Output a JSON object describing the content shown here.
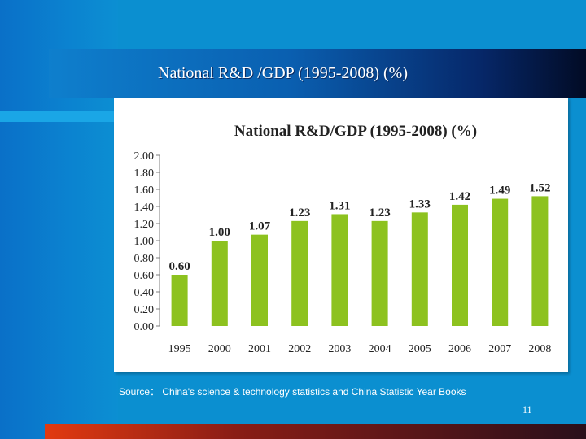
{
  "slide": {
    "title": "National R&D /GDP (1995-2008)  (%)",
    "source": "Source： China's science & technology statistics and China Statistic Year Books",
    "page_number": "11"
  },
  "colors": {
    "bar": "#8dc21f",
    "axis": "#7f7f7f",
    "text": "#222222"
  },
  "chart_data": {
    "type": "bar",
    "title": "National R&D/GDP  (1995-2008)  (%)",
    "categories": [
      "1995",
      "2000",
      "2001",
      "2002",
      "2003",
      "2004",
      "2005",
      "2006",
      "2007",
      "2008"
    ],
    "values": [
      0.6,
      1.0,
      1.07,
      1.23,
      1.31,
      1.23,
      1.33,
      1.42,
      1.49,
      1.52
    ],
    "value_labels": [
      "0.60",
      "1.00",
      "1.07",
      "1.23",
      "1.31",
      "1.23",
      "1.33",
      "1.42",
      "1.49",
      "1.52"
    ],
    "ylim": [
      0,
      2.0
    ],
    "yticks": [
      "0.00",
      "0.20",
      "0.40",
      "0.60",
      "0.80",
      "1.00",
      "1.20",
      "1.40",
      "1.60",
      "1.80",
      "2.00"
    ],
    "xlabel": "",
    "ylabel": "",
    "grid": false,
    "legend": "none"
  }
}
